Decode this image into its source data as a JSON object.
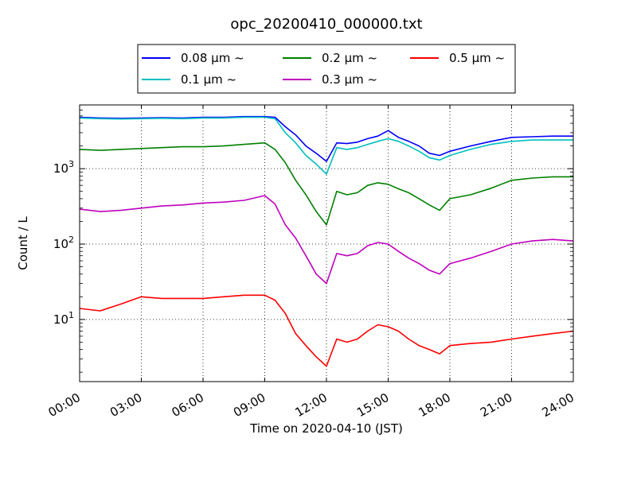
{
  "chart_data": {
    "type": "line",
    "title": "opc_20200410_000000.txt",
    "xlabel": "Time on 2020-04-10 (JST)",
    "ylabel": "Count / L",
    "yscale": "log",
    "xlim": [
      "2020-04-10 00:00",
      "2020-04-11 00:00"
    ],
    "ylim": [
      1.5,
      7000
    ],
    "x_ticks": [
      "00:00",
      "03:00",
      "06:00",
      "09:00",
      "12:00",
      "15:00",
      "18:00",
      "21:00",
      "24:00"
    ],
    "y_ticks": [
      {
        "value": 10,
        "base": "10",
        "exp": "1"
      },
      {
        "value": 100,
        "base": "10",
        "exp": "2"
      },
      {
        "value": 1000,
        "base": "10",
        "exp": "3"
      }
    ],
    "grid": true,
    "legend": {
      "placement": "top-center",
      "columns": 3
    },
    "x": [
      "2020-04-10 00:00",
      "2020-04-10 01:00",
      "2020-04-10 02:00",
      "2020-04-10 03:00",
      "2020-04-10 04:00",
      "2020-04-10 05:00",
      "2020-04-10 06:00",
      "2020-04-10 07:00",
      "2020-04-10 08:00",
      "2020-04-10 09:00",
      "2020-04-10 09:30",
      "2020-04-10 10:00",
      "2020-04-10 10:30",
      "2020-04-10 11:00",
      "2020-04-10 11:30",
      "2020-04-10 12:00",
      "2020-04-10 12:30",
      "2020-04-10 13:00",
      "2020-04-10 13:30",
      "2020-04-10 14:00",
      "2020-04-10 14:30",
      "2020-04-10 15:00",
      "2020-04-10 15:30",
      "2020-04-10 16:00",
      "2020-04-10 16:30",
      "2020-04-10 17:00",
      "2020-04-10 17:30",
      "2020-04-10 18:00",
      "2020-04-10 19:00",
      "2020-04-10 20:00",
      "2020-04-10 21:00",
      "2020-04-10 22:00",
      "2020-04-10 23:00",
      "2020-04-11 00:00"
    ],
    "series": [
      {
        "name": "0.08 μm ~",
        "color": "#0000ff",
        "values": [
          4800,
          4700,
          4650,
          4700,
          4750,
          4700,
          4800,
          4800,
          4900,
          4900,
          4800,
          3600,
          2800,
          2000,
          1600,
          1250,
          2200,
          2150,
          2250,
          2500,
          2700,
          3200,
          2600,
          2300,
          2000,
          1600,
          1500,
          1700,
          2000,
          2300,
          2600,
          2650,
          2700,
          2700
        ]
      },
      {
        "name": "0.1 μm ~",
        "color": "#00bfbf",
        "values": [
          4700,
          4600,
          4550,
          4600,
          4650,
          4600,
          4700,
          4700,
          4800,
          4800,
          4600,
          3000,
          2200,
          1500,
          1150,
          850,
          1900,
          1800,
          1900,
          2100,
          2300,
          2500,
          2300,
          2000,
          1700,
          1400,
          1300,
          1500,
          1800,
          2100,
          2300,
          2400,
          2400,
          2400
        ]
      },
      {
        "name": "0.2 μm ~",
        "color": "#008000",
        "values": [
          1800,
          1750,
          1800,
          1850,
          1900,
          1950,
          1950,
          2000,
          2100,
          2200,
          1800,
          1200,
          700,
          450,
          270,
          180,
          500,
          450,
          480,
          600,
          650,
          620,
          540,
          480,
          400,
          330,
          280,
          400,
          450,
          550,
          700,
          750,
          780,
          780
        ]
      },
      {
        "name": "0.3 μm ~",
        "color": "#bf00bf",
        "values": [
          290,
          270,
          280,
          300,
          320,
          330,
          350,
          360,
          380,
          440,
          340,
          180,
          120,
          70,
          40,
          30,
          75,
          70,
          75,
          95,
          105,
          100,
          80,
          65,
          55,
          45,
          40,
          55,
          65,
          80,
          100,
          110,
          115,
          110
        ]
      },
      {
        "name": "0.5 μm ~",
        "color": "#ff0000",
        "values": [
          14,
          13,
          16,
          20,
          19,
          19,
          19,
          20,
          21,
          21,
          18,
          12,
          6.5,
          4.5,
          3.2,
          2.4,
          5.5,
          5.0,
          5.5,
          7.0,
          8.5,
          8.0,
          7.0,
          5.5,
          4.5,
          4.0,
          3.5,
          4.5,
          4.8,
          5.0,
          5.5,
          6.0,
          6.5,
          7.0
        ]
      }
    ]
  }
}
